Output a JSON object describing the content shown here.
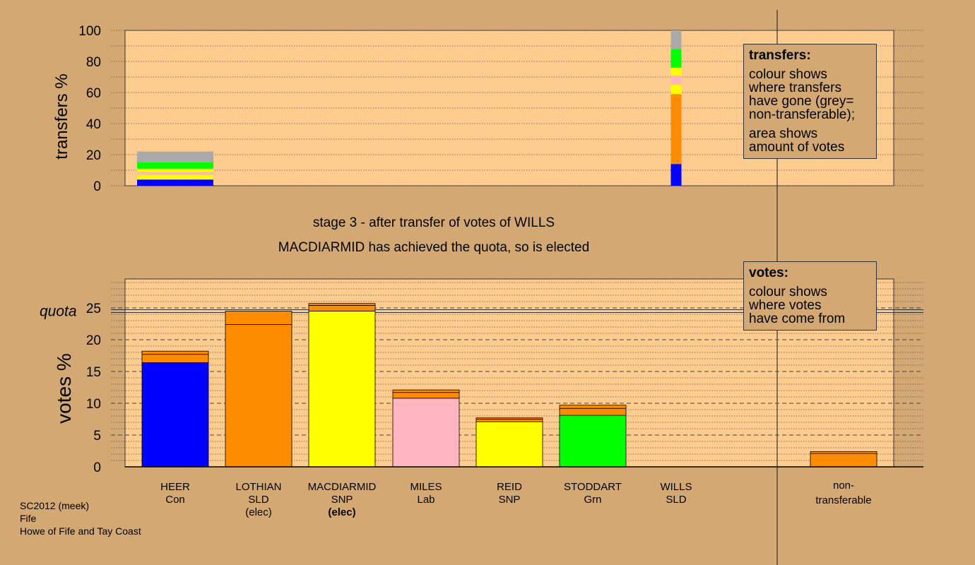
{
  "chart_data": [
    {
      "type": "bar",
      "title": "",
      "ylabel": "transfers %",
      "ylim": [
        0,
        100
      ],
      "yticks": [
        0,
        20,
        40,
        60,
        80,
        100
      ],
      "bars": [
        {
          "candidate_index": 0,
          "segments": [
            {
              "color": "#0000ff",
              "value": 4
            },
            {
              "color": "#ffff00",
              "value": 3
            },
            {
              "color": "#ffb6c1",
              "value": 2
            },
            {
              "color": "#ffff00",
              "value": 2
            },
            {
              "color": "#00ff00",
              "value": 4
            },
            {
              "color": "#aaaaaa",
              "value": 7
            }
          ]
        },
        {
          "candidate_index": 6,
          "narrow": true,
          "segments": [
            {
              "color": "#0000ff",
              "value": 14
            },
            {
              "color": "#ff8c00",
              "value": 45
            },
            {
              "color": "#ffff00",
              "value": 6
            },
            {
              "color": "#ffb6c1",
              "value": 6
            },
            {
              "color": "#ffff00",
              "value": 5
            },
            {
              "color": "#00ff00",
              "value": 12
            },
            {
              "color": "#aaaaaa",
              "value": 12
            }
          ]
        }
      ]
    },
    {
      "type": "bar",
      "stacked": true,
      "title": "",
      "ylabel": "votes %",
      "ylim": [
        0,
        25
      ],
      "yticks": [
        0,
        5,
        10,
        15,
        20,
        25
      ],
      "quota": 24.5,
      "quota_label": "quota",
      "categories": [
        {
          "name": "HEER",
          "party": "Con",
          "note": "",
          "segments": [
            {
              "color": "#0000ff",
              "value": 16.4
            },
            {
              "color": "#ff8c00",
              "value": 1.3
            },
            {
              "color": "#ff8c00",
              "value": 0.5
            }
          ]
        },
        {
          "name": "LOTHIAN",
          "party": "SLD",
          "note": "(elec)",
          "note_bold": false,
          "segments": [
            {
              "color": "#ff8c00",
              "value": 22.4
            },
            {
              "color": "#ff8c00",
              "value": 2.1
            }
          ]
        },
        {
          "name": "MACDIARMID",
          "party": "SNP",
          "note": "(elec)",
          "note_bold": true,
          "segments": [
            {
              "color": "#ffff00",
              "value": 24.5
            },
            {
              "color": "#ff8c00",
              "value": 0.9
            },
            {
              "color": "#ff8c00",
              "value": 0.3
            }
          ]
        },
        {
          "name": "MILES",
          "party": "Lab",
          "note": "",
          "segments": [
            {
              "color": "#ffb6c1",
              "value": 10.8
            },
            {
              "color": "#ff8c00",
              "value": 0.9
            },
            {
              "color": "#ff8c00",
              "value": 0.4
            }
          ]
        },
        {
          "name": "REID",
          "party": "SNP",
          "note": "",
          "segments": [
            {
              "color": "#ffff00",
              "value": 7.1
            },
            {
              "color": "#ff8c00",
              "value": 0.4
            },
            {
              "color": "#ff8c00",
              "value": 0.2
            }
          ]
        },
        {
          "name": "STODDART",
          "party": "Grn",
          "note": "",
          "segments": [
            {
              "color": "#00ff00",
              "value": 8.1
            },
            {
              "color": "#ff8c00",
              "value": 1.1
            },
            {
              "color": "#ff8c00",
              "value": 0.5
            }
          ]
        },
        {
          "name": "WILLS",
          "party": "SLD",
          "note": "",
          "segments": []
        }
      ],
      "non_transferable": {
        "label_line1": "non-",
        "label_line2": "transferable",
        "segments": [
          {
            "color": "#ff8c00",
            "value": 2.1
          },
          {
            "color": "#ff8c00",
            "value": 0.3
          }
        ]
      }
    }
  ],
  "headline": {
    "line1": "stage 3 - after transfer of votes of WILLS",
    "line2": "MACDIARMID has achieved the quota, so is elected"
  },
  "legend_transfers": {
    "heading": "transfers:",
    "lines_a": [
      "colour shows",
      "where transfers",
      "have gone (grey=",
      "non-transferable);"
    ],
    "lines_b": [
      "area shows",
      "amount of votes"
    ]
  },
  "legend_votes": {
    "heading": "votes:",
    "lines": [
      "colour shows",
      "where votes",
      "have come from"
    ]
  },
  "footer": {
    "line1": "SC2012 (meek)",
    "line2": "Fife",
    "line3": "Howe of Fife and Tay Coast"
  },
  "colors": {
    "background": "#d4a872",
    "plot_background": "#ffcc8f"
  }
}
